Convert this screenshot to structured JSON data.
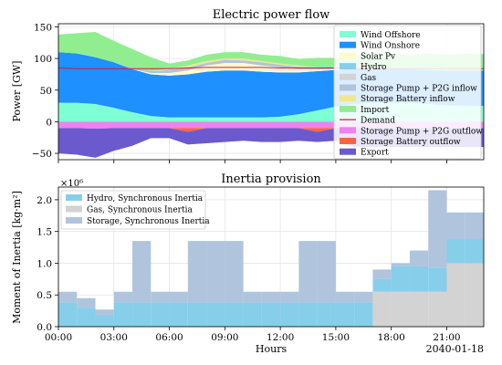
{
  "chart_data": [
    {
      "type": "area",
      "title": "Electric power flow",
      "ylabel": "Power [GW]",
      "xlabel": "",
      "ylim": [
        -60,
        155
      ],
      "xlim": [
        0,
        23
      ],
      "yticks": [
        -50,
        0,
        50,
        100,
        150
      ],
      "grid": true,
      "legend_position": "right",
      "x": [
        0,
        1,
        2,
        3,
        4,
        5,
        6,
        7,
        8,
        9,
        10,
        11,
        12,
        13,
        14,
        15,
        16,
        17,
        18,
        19,
        20,
        21,
        22,
        23
      ],
      "positive_series": [
        {
          "name": "Wind Offshore",
          "color": "#7fffd4",
          "values": [
            30,
            30,
            28,
            22,
            15,
            9,
            7,
            7,
            7,
            7,
            7,
            7,
            8,
            12,
            18,
            24,
            28,
            30,
            30,
            30,
            28,
            26,
            25,
            25
          ]
        },
        {
          "name": "Wind Onshore",
          "color": "#1e90ff",
          "values": [
            80,
            78,
            74,
            72,
            68,
            66,
            66,
            68,
            72,
            74,
            74,
            72,
            70,
            66,
            62,
            58,
            56,
            54,
            54,
            53,
            54,
            55,
            56,
            56
          ]
        },
        {
          "name": "Solar Pv",
          "color": "#fffacd",
          "values": [
            0,
            0,
            0,
            0,
            0,
            2,
            4,
            6,
            10,
            12,
            12,
            10,
            8,
            5,
            3,
            1,
            0,
            0,
            0,
            0,
            0,
            0,
            0,
            0
          ]
        },
        {
          "name": "Hydro",
          "color": "#87ceeb",
          "values": [
            0,
            0,
            0,
            0,
            0,
            0,
            0,
            0,
            0,
            0,
            0,
            0,
            0,
            0,
            0,
            0,
            0,
            0,
            0,
            0,
            0,
            0,
            0,
            0
          ]
        },
        {
          "name": "Gas",
          "color": "#d3d3d3",
          "values": [
            0,
            0,
            0,
            0,
            0,
            0,
            0,
            0,
            0,
            0,
            0,
            0,
            0,
            0,
            0,
            0,
            0,
            0,
            0,
            0,
            0,
            0,
            0,
            0
          ]
        },
        {
          "name": "Storage Pump + P2G inflow",
          "color": "#b0c4de",
          "values": [
            0,
            0,
            0,
            0,
            2,
            3,
            5,
            5,
            4,
            5,
            4,
            5,
            4,
            4,
            3,
            2,
            0,
            0,
            0,
            0,
            0,
            0,
            0,
            0
          ]
        },
        {
          "name": "Storage Battery inflow",
          "color": "#f0e68c",
          "values": [
            0,
            0,
            0,
            0,
            0,
            0,
            2,
            3,
            3,
            2,
            3,
            2,
            2,
            2,
            0,
            0,
            0,
            0,
            0,
            0,
            0,
            0,
            0,
            0
          ]
        },
        {
          "name": "Import",
          "color": "#90ee90",
          "values": [
            28,
            32,
            40,
            34,
            30,
            22,
            8,
            8,
            10,
            10,
            10,
            10,
            12,
            10,
            15,
            16,
            20,
            22,
            24,
            22,
            26,
            25,
            27,
            26
          ]
        }
      ],
      "negative_series": [
        {
          "name": "Storage Pump + P2G outflow",
          "color": "#ee82ee",
          "values": [
            -10,
            -10,
            -11,
            -10,
            -10,
            -10,
            -10,
            -10,
            -10,
            -10,
            -10,
            -10,
            -10,
            -10,
            -10,
            -10,
            -10,
            -10,
            -10,
            -10,
            -10,
            -10,
            -10,
            -10
          ]
        },
        {
          "name": "Storage Battery outflow",
          "color": "#ff6347",
          "values": [
            0,
            0,
            0,
            0,
            0,
            0,
            0,
            -6,
            0,
            0,
            0,
            0,
            0,
            0,
            -6,
            0,
            0,
            0,
            0,
            0,
            0,
            0,
            0,
            0
          ]
        },
        {
          "name": "Export",
          "color": "#6a5acd",
          "values": [
            -40,
            -42,
            -46,
            -36,
            -28,
            -16,
            -16,
            -20,
            -24,
            -22,
            -20,
            -22,
            -22,
            -20,
            -16,
            -20,
            -30,
            -30,
            -30,
            -30,
            -30,
            -30,
            -30,
            -30
          ]
        }
      ],
      "line_series": [
        {
          "name": "Demand",
          "color": "#dc143c",
          "values": [
            85,
            84,
            84,
            84,
            84,
            84,
            84,
            85,
            86,
            86,
            86,
            86,
            85,
            85,
            85,
            85,
            84,
            84,
            84,
            84,
            84,
            84,
            84,
            84
          ]
        }
      ],
      "legend_order": [
        "Wind Offshore",
        "Wind Onshore",
        "Solar Pv",
        "Hydro",
        "Gas",
        "Storage Pump + P2G inflow",
        "Storage Battery inflow",
        "Import",
        "Demand",
        "Storage Pump + P2G outflow",
        "Storage Battery outflow",
        "Export"
      ]
    },
    {
      "type": "area",
      "title": "Inertia provision",
      "ylabel": "Moment of Inertia [kg·m²]",
      "xlabel": "Hours",
      "offset_text": "×10⁶",
      "ylim": [
        0,
        2.2
      ],
      "xlim": [
        0,
        23
      ],
      "yticks": [
        0.0,
        0.5,
        1.0,
        1.5,
        2.0
      ],
      "ytick_labels": [
        "0.0",
        "0.5",
        "1.0",
        "1.5",
        "2.0"
      ],
      "xticks": [
        0,
        3,
        6,
        9,
        12,
        15,
        18,
        21
      ],
      "xtick_labels": [
        "00:00",
        "03:00",
        "06:00",
        "09:00",
        "12:00",
        "15:00",
        "18:00",
        "21:00"
      ],
      "date_label": "2040-01-18",
      "grid": true,
      "legend_position": "top-left",
      "step": true,
      "x": [
        0,
        1,
        2,
        3,
        4,
        5,
        6,
        7,
        8,
        9,
        10,
        11,
        12,
        13,
        14,
        15,
        16,
        17,
        18,
        19,
        20,
        21,
        22,
        23
      ],
      "series": [
        {
          "name": "Gas, Synchronous Inertia",
          "color": "#d3d3d3",
          "values": [
            0,
            0,
            0,
            0,
            0,
            0,
            0,
            0,
            0,
            0,
            0,
            0,
            0,
            0,
            0,
            0,
            0,
            0.55,
            0.55,
            0.55,
            0.55,
            1.0,
            1.0,
            1.0
          ]
        },
        {
          "name": "Hydro, Synchronous Inertia",
          "color": "#87ceeb",
          "values": [
            0.38,
            0.3,
            0.18,
            0.38,
            0.38,
            0.38,
            0.38,
            0.38,
            0.38,
            0.38,
            0.38,
            0.38,
            0.38,
            0.38,
            0.38,
            0.38,
            0.38,
            0.2,
            0.4,
            0.4,
            0.38,
            0.38,
            0.38,
            0.38
          ]
        },
        {
          "name": "Storage, Synchronous Inertia",
          "color": "#b0c4de",
          "values": [
            0.17,
            0.15,
            0.09,
            0.17,
            0.97,
            0.17,
            0.17,
            0.97,
            0.97,
            0.97,
            0.17,
            0.17,
            0.17,
            0.97,
            0.97,
            0.17,
            0.17,
            0.15,
            0.05,
            0.25,
            1.22,
            0.42,
            0.42,
            0.42
          ]
        }
      ],
      "legend_order": [
        "Hydro, Synchronous Inertia",
        "Gas, Synchronous Inertia",
        "Storage, Synchronous Inertia"
      ]
    }
  ]
}
